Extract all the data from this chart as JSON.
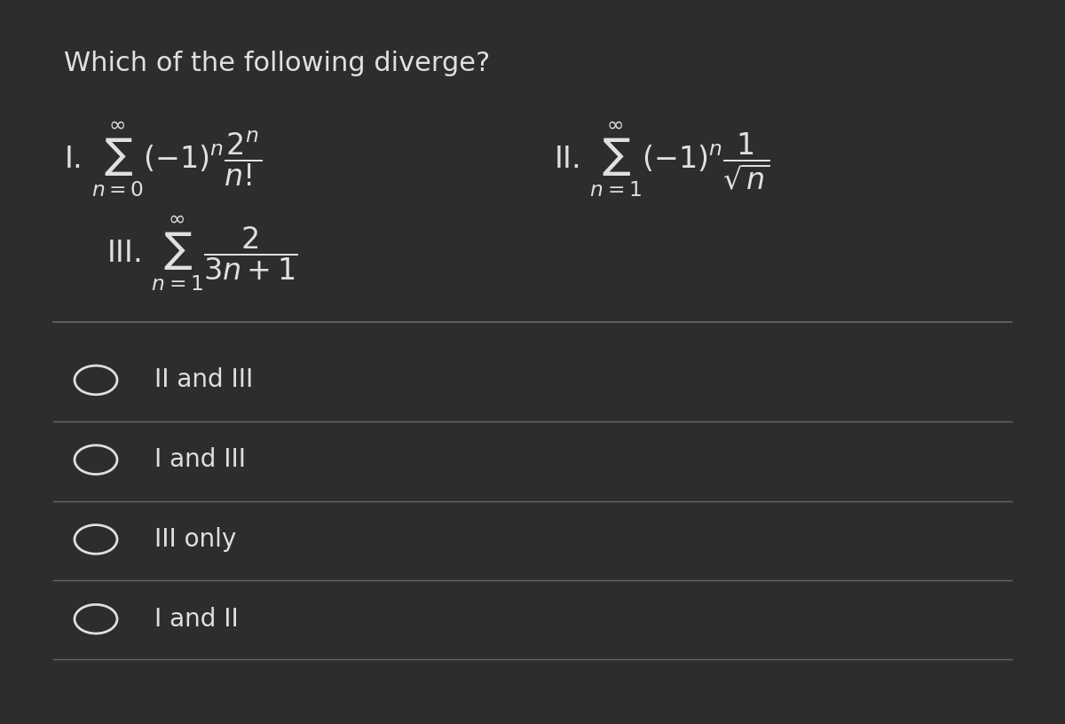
{
  "background_color": "#1a1a1a",
  "panel_color": "#2d2d2d",
  "text_color": "#e0e0e0",
  "line_color": "#666666",
  "title": "Which of the following diverge?",
  "title_fontsize": 22,
  "options": [
    "II and III",
    "I and III",
    "III only",
    "I and II"
  ],
  "option_fontsize": 20,
  "figsize": [
    12,
    8.16
  ],
  "dpi": 100
}
